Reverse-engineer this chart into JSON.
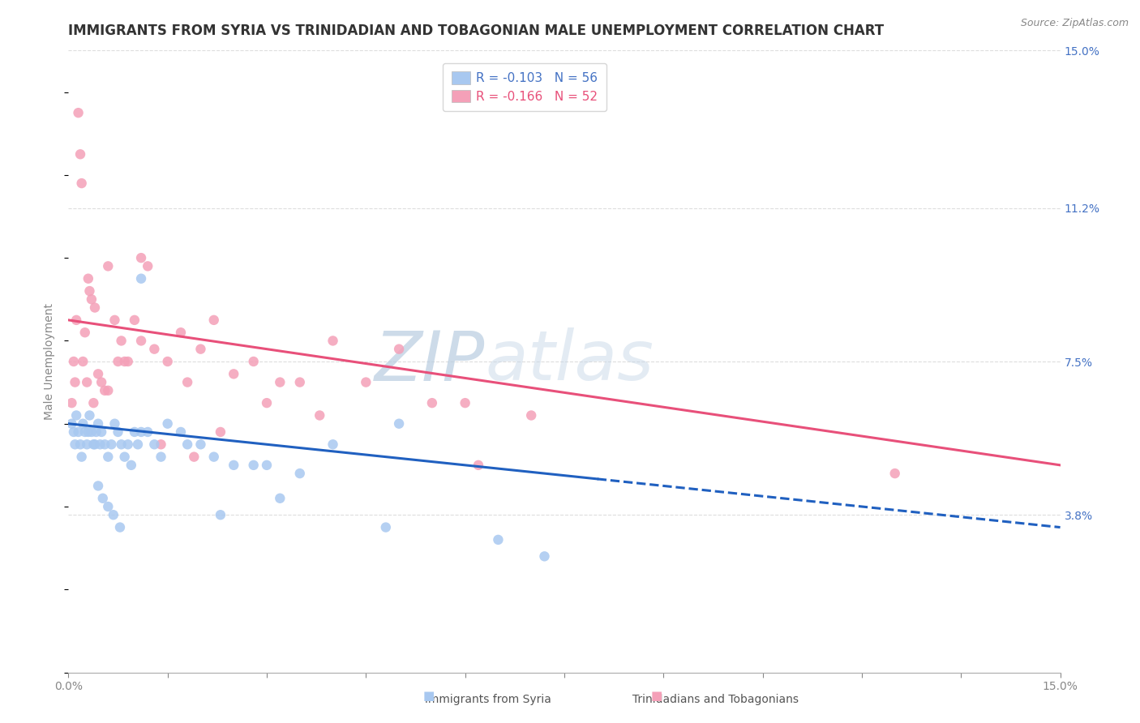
{
  "title": "IMMIGRANTS FROM SYRIA VS TRINIDADIAN AND TOBAGONIAN MALE UNEMPLOYMENT CORRELATION CHART",
  "source": "Source: ZipAtlas.com",
  "ylabel": "Male Unemployment",
  "right_yticks": [
    3.8,
    7.5,
    11.2,
    15.0
  ],
  "right_ytick_labels": [
    "3.8%",
    "7.5%",
    "11.2%",
    "15.0%"
  ],
  "xmin": 0.0,
  "xmax": 15.0,
  "ymin": 0.0,
  "ymax": 15.0,
  "legend_entry_blue": "R = -0.103   N = 56",
  "legend_entry_pink": "R = -0.166   N = 52",
  "legend_label_blue": "Immigrants from Syria",
  "legend_label_pink": "Trinidadians and Tobagonians",
  "color_blue": "#A8C8F0",
  "color_pink": "#F4A0B8",
  "trendline_blue_color": "#2060C0",
  "trendline_pink_color": "#E8507A",
  "watermark": "ZIPatlas",
  "watermark_color": "#D8E8F5",
  "blue_scatter_x": [
    0.05,
    0.08,
    0.1,
    0.12,
    0.15,
    0.18,
    0.2,
    0.22,
    0.25,
    0.28,
    0.3,
    0.32,
    0.35,
    0.38,
    0.4,
    0.42,
    0.45,
    0.48,
    0.5,
    0.55,
    0.6,
    0.65,
    0.7,
    0.75,
    0.8,
    0.85,
    0.9,
    0.95,
    1.0,
    1.05,
    1.1,
    1.2,
    1.3,
    1.5,
    1.7,
    2.0,
    2.5,
    3.0,
    3.5,
    4.0,
    5.0,
    1.8,
    2.2,
    2.8,
    0.45,
    0.52,
    0.6,
    0.68,
    0.78,
    1.1,
    1.4,
    2.3,
    3.2,
    4.8,
    6.5,
    7.2
  ],
  "blue_scatter_y": [
    6.0,
    5.8,
    5.5,
    6.2,
    5.8,
    5.5,
    5.2,
    6.0,
    5.8,
    5.5,
    5.8,
    6.2,
    5.8,
    5.5,
    5.5,
    5.8,
    6.0,
    5.5,
    5.8,
    5.5,
    5.2,
    5.5,
    6.0,
    5.8,
    5.5,
    5.2,
    5.5,
    5.0,
    5.8,
    5.5,
    9.5,
    5.8,
    5.5,
    6.0,
    5.8,
    5.5,
    5.0,
    5.0,
    4.8,
    5.5,
    6.0,
    5.5,
    5.2,
    5.0,
    4.5,
    4.2,
    4.0,
    3.8,
    3.5,
    5.8,
    5.2,
    3.8,
    4.2,
    3.5,
    3.2,
    2.8
  ],
  "pink_scatter_x": [
    0.05,
    0.08,
    0.1,
    0.12,
    0.15,
    0.18,
    0.2,
    0.25,
    0.3,
    0.35,
    0.4,
    0.5,
    0.6,
    0.7,
    0.8,
    0.9,
    1.0,
    1.1,
    1.2,
    1.3,
    1.5,
    1.7,
    2.0,
    2.2,
    2.5,
    3.0,
    3.5,
    4.0,
    5.0,
    6.0,
    7.0,
    0.22,
    0.32,
    0.45,
    0.6,
    0.85,
    1.1,
    1.8,
    2.8,
    3.2,
    4.5,
    5.5,
    0.38,
    1.4,
    1.9,
    2.3,
    3.8,
    0.28,
    0.55,
    0.75,
    12.5,
    6.2
  ],
  "pink_scatter_y": [
    6.5,
    7.5,
    7.0,
    8.5,
    13.5,
    12.5,
    11.8,
    8.2,
    9.5,
    9.0,
    8.8,
    7.0,
    9.8,
    8.5,
    8.0,
    7.5,
    8.5,
    10.0,
    9.8,
    7.8,
    7.5,
    8.2,
    7.8,
    8.5,
    7.2,
    6.5,
    7.0,
    8.0,
    7.8,
    6.5,
    6.2,
    7.5,
    9.2,
    7.2,
    6.8,
    7.5,
    8.0,
    7.0,
    7.5,
    7.0,
    7.0,
    6.5,
    6.5,
    5.5,
    5.2,
    5.8,
    6.2,
    7.0,
    6.8,
    7.5,
    4.8,
    5.0
  ],
  "blue_trendline_x0": 0.0,
  "blue_trendline_x_solid_end": 8.0,
  "blue_trendline_x1": 15.0,
  "blue_trendline_y0": 6.0,
  "blue_trendline_y1": 3.5,
  "pink_trendline_x0": 0.0,
  "pink_trendline_x1": 15.0,
  "pink_trendline_y0": 8.5,
  "pink_trendline_y1": 5.0,
  "grid_color": "#DDDDDD",
  "background_color": "#FFFFFF",
  "title_fontsize": 12,
  "axis_fontsize": 10,
  "legend_fontsize": 11
}
